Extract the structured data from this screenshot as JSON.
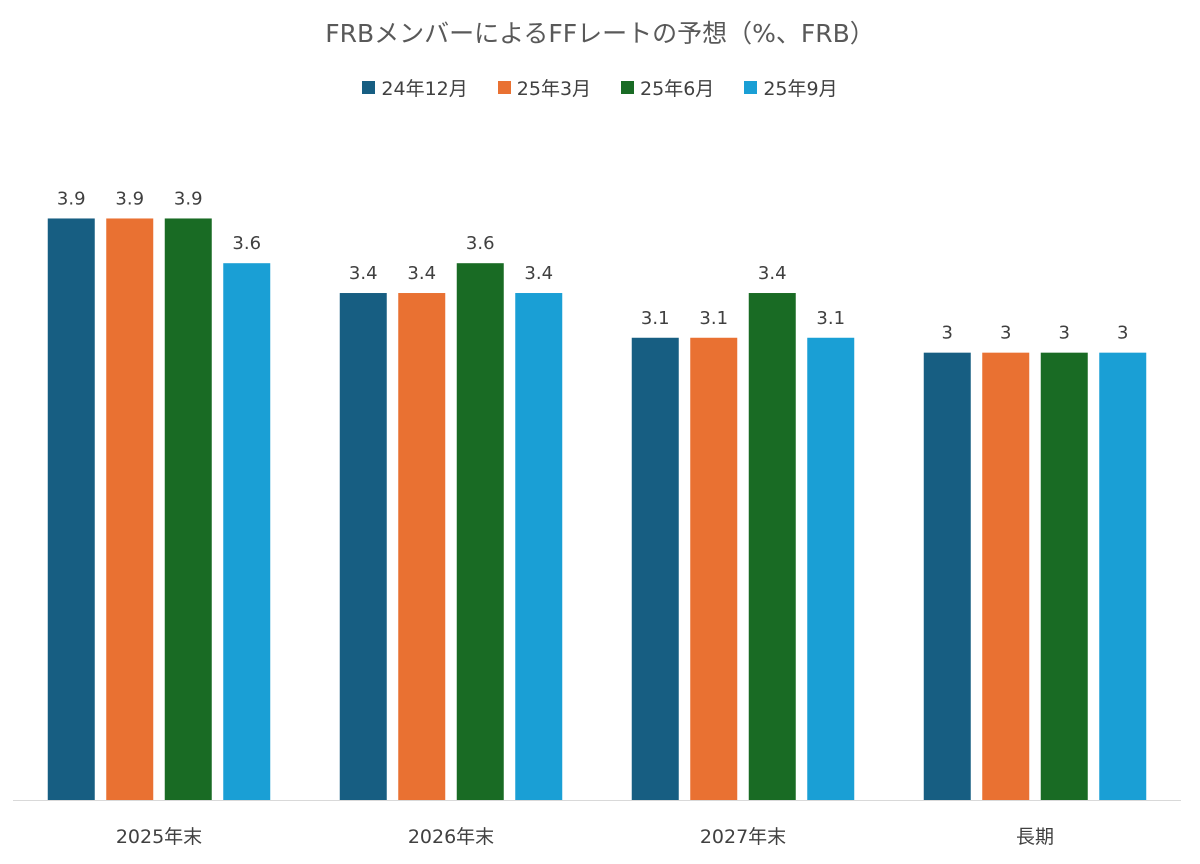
{
  "chart_data": {
    "type": "bar",
    "title": "FRBメンバーによるFFレートの予想（%、FRB）",
    "categories": [
      "2025年末",
      "2026年末",
      "2027年末",
      "長期"
    ],
    "series": [
      {
        "name": "24年12月",
        "color": "#175E82",
        "values": [
          3.9,
          3.4,
          3.1,
          3
        ]
      },
      {
        "name": "25年3月",
        "color": "#E97132",
        "values": [
          3.9,
          3.4,
          3.1,
          3
        ]
      },
      {
        "name": "25年6月",
        "color": "#196B24",
        "values": [
          3.9,
          3.6,
          3.4,
          3
        ]
      },
      {
        "name": "25年9月",
        "color": "#1A9FD5",
        "values": [
          3.6,
          3.4,
          3.1,
          3
        ]
      }
    ],
    "xlabel": "",
    "ylabel": "",
    "ylim": [
      0,
      4.5
    ],
    "grid": false,
    "legend": "top-center",
    "data_labels": true
  }
}
